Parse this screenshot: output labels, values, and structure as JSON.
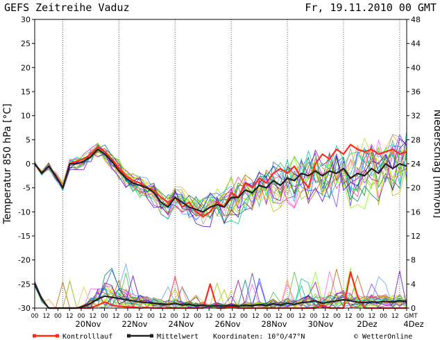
{
  "header": {
    "title": "GEFS Zeitreihe Vaduz",
    "date": "Fr, 19.11.2010 00 GMT"
  },
  "chart_data": {
    "type": "line",
    "ylabel_left": "Temperatur 850 hPa [°C]",
    "ylabel_right": "Niederschlag [mm/6h]",
    "left_axis": {
      "min": -30,
      "max": 30,
      "ticks": [
        30,
        25,
        20,
        15,
        10,
        5,
        0,
        -5,
        -10,
        -15,
        -20,
        -25,
        -30
      ]
    },
    "right_axis": {
      "min": 0,
      "max": 48,
      "ticks": [
        48,
        44,
        40,
        36,
        32,
        28,
        24,
        20,
        16,
        12,
        8,
        4,
        0
      ]
    },
    "hour_ticks": [
      "00",
      "12",
      "00",
      "12",
      "00",
      "12",
      "00",
      "12",
      "00",
      "12",
      "00",
      "12",
      "00",
      "12",
      "00",
      "12",
      "00",
      "12",
      "00",
      "12",
      "00",
      "12",
      "00",
      "12",
      "00",
      "12",
      "00",
      "12",
      "00",
      "12",
      "00",
      "12",
      "GMT"
    ],
    "date_labels": [
      "20Nov",
      "22Nov",
      "24Nov",
      "26Nov",
      "28Nov",
      "30Nov",
      "2Dez",
      "4Dez"
    ],
    "temperature_mean": {
      "name": "Mittelwert",
      "values": [
        0,
        -2,
        -0.5,
        -2.5,
        -5,
        0,
        0,
        0.5,
        1.5,
        3,
        2,
        0.5,
        -1.5,
        -3,
        -4,
        -4.5,
        -5,
        -6,
        -8,
        -9,
        -7,
        -8,
        -9,
        -9.5,
        -10,
        -9,
        -8.5,
        -9,
        -7,
        -7,
        -5.5,
        -6,
        -4.5,
        -5,
        -3.5,
        -4.5,
        -3,
        -3.5,
        -2,
        -2.5,
        -1.5,
        -2.5,
        -1.5,
        -2,
        -1,
        -3,
        -2,
        -2.5,
        -1,
        -2,
        0,
        -1,
        0,
        -0.5
      ]
    },
    "temperature_control": {
      "name": "Kontrolllauf",
      "values": [
        0,
        -2,
        -0.5,
        -2.5,
        -5,
        0,
        0.5,
        1,
        2,
        3.5,
        2.5,
        1,
        -1,
        -2.5,
        -3.5,
        -4,
        -5,
        -5.5,
        -7,
        -8,
        -7,
        -9,
        -8,
        -10,
        -11,
        -10,
        -8,
        -9,
        -6,
        -7,
        -4,
        -5,
        -3,
        -4,
        -2,
        -1,
        -2,
        -0.5,
        -3,
        -5,
        0,
        2,
        1,
        3,
        2,
        4,
        3,
        2.5,
        3,
        2,
        2.5,
        3,
        2,
        2.5
      ]
    },
    "precip_mean": {
      "name": "Mittelwert",
      "values": [
        4,
        1.5,
        0,
        0,
        0,
        0,
        0,
        0.3,
        0.8,
        1.5,
        2,
        1.8,
        1.6,
        1.4,
        1.2,
        1,
        0.9,
        0.8,
        0.7,
        0.6,
        0.8,
        0.5,
        0.6,
        0.4,
        0.5,
        0.3,
        0.4,
        0.3,
        0.4,
        0.3,
        0.5,
        0.4,
        0.6,
        0.4,
        0.7,
        0.5,
        0.8,
        0.6,
        0.9,
        1,
        1.2,
        0.8,
        1,
        1.2,
        1.4,
        1.2,
        1,
        0.9,
        1,
        1,
        1.1,
        1,
        1.2,
        1.1
      ]
    },
    "precip_control": {
      "name": "Kontrolllauf",
      "values": [
        4,
        1.5,
        0,
        0,
        0,
        0,
        0,
        0,
        0,
        0.5,
        1,
        0.5,
        0.3,
        0.2,
        0.2,
        0,
        0.1,
        0,
        0,
        0,
        0,
        0,
        0,
        0,
        0,
        4,
        0,
        0,
        0.2,
        0,
        0,
        0,
        0,
        0,
        0,
        0,
        0,
        0,
        0,
        0,
        0,
        0.5,
        0,
        0,
        0,
        6,
        2,
        0,
        0,
        0,
        0,
        0,
        0,
        0
      ]
    },
    "legend": [
      {
        "name": "Kontrolllauf",
        "color": "#ff2a1a"
      },
      {
        "name": "Mittelwert",
        "color": "#202020"
      }
    ],
    "coordinates": "Koordinaten: 10°O/47°N",
    "credit": "© WetterOnline",
    "grid": true
  }
}
